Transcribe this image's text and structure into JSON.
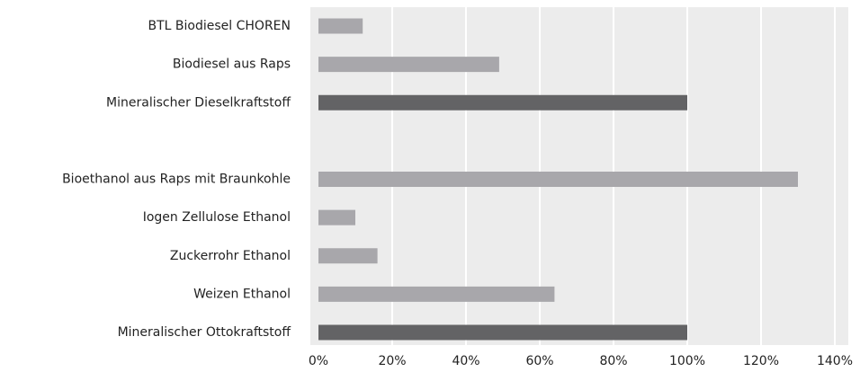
{
  "chart_data": {
    "type": "barh",
    "categories": [
      "BTL Biodiesel CHOREN",
      "Biodiesel aus Raps",
      "Mineralischer Dieselkraftstoff",
      null,
      "Bioethanol aus Raps mit Braunkohle",
      "Iogen Zellulose Ethanol",
      "Zuckerrohr Ethanol",
      "Weizen Ethanol",
      "Mineralischer Ottokraftstoff"
    ],
    "values": [
      12,
      49,
      100,
      null,
      130,
      10,
      16,
      64,
      100
    ],
    "colors": [
      "#a8a7ab",
      "#a8a7ab",
      "#636365",
      null,
      "#a8a7ab",
      "#a8a7ab",
      "#a8a7ab",
      "#a8a7ab",
      "#636365"
    ],
    "xlim": [
      0,
      140
    ],
    "xticks": [
      {
        "value": 0,
        "label": "0%"
      },
      {
        "value": 20,
        "label": "20%"
      },
      {
        "value": 40,
        "label": "40%"
      },
      {
        "value": 60,
        "label": "60%"
      },
      {
        "value": 80,
        "label": "80%"
      },
      {
        "value": 100,
        "label": "100%"
      },
      {
        "value": 120,
        "label": "120%"
      },
      {
        "value": 140,
        "label": "140%"
      }
    ],
    "grid": true
  }
}
